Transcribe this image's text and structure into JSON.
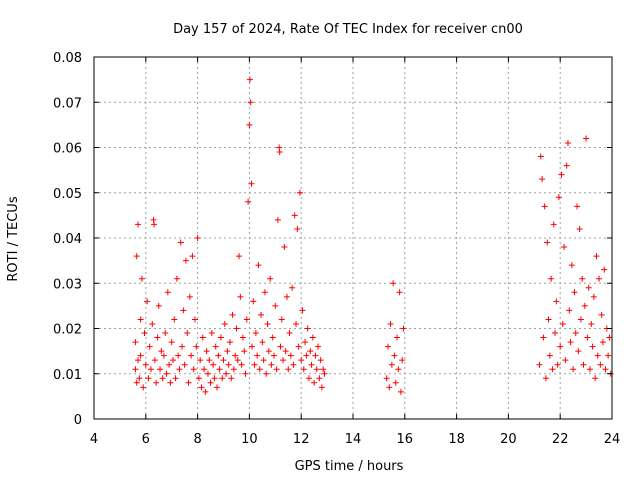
{
  "chart_data": {
    "type": "scatter",
    "title": "Day 157 of 2024, Rate Of TEC Index for receiver cn00",
    "xlabel": "GPS time / hours",
    "ylabel": "ROTI / TECUs",
    "xlim": [
      4,
      24
    ],
    "ylim": [
      0,
      0.08
    ],
    "grid": true,
    "marker": "+",
    "marker_color": "#ff0000",
    "x_ticks": [
      4,
      6,
      8,
      10,
      12,
      14,
      16,
      18,
      20,
      22,
      24
    ],
    "x_tick_labels": [
      "4",
      "6",
      "8",
      "10",
      "12",
      "14",
      "16",
      "18",
      "20",
      "22",
      "24"
    ],
    "y_ticks": [
      0,
      0.01,
      0.02,
      0.03,
      0.04,
      0.05,
      0.06,
      0.07,
      0.08
    ],
    "y_tick_labels": [
      "0",
      "0.01",
      "0.02",
      "0.03",
      "0.04",
      "0.05",
      "0.06",
      "0.07",
      "0.08"
    ],
    "series": [
      {
        "name": "ROTI",
        "points": [
          [
            5.6,
            0.011
          ],
          [
            5.6,
            0.017
          ],
          [
            5.65,
            0.008
          ],
          [
            5.65,
            0.036
          ],
          [
            5.7,
            0.043
          ],
          [
            5.7,
            0.013
          ],
          [
            5.75,
            0.009
          ],
          [
            5.8,
            0.022
          ],
          [
            5.8,
            0.014
          ],
          [
            5.85,
            0.031
          ],
          [
            5.9,
            0.007
          ],
          [
            5.95,
            0.019
          ],
          [
            6.0,
            0.012
          ],
          [
            6.05,
            0.026
          ],
          [
            6.1,
            0.009
          ],
          [
            6.15,
            0.016
          ],
          [
            6.2,
            0.011
          ],
          [
            6.25,
            0.021
          ],
          [
            6.3,
            0.044
          ],
          [
            6.32,
            0.043
          ],
          [
            6.35,
            0.013
          ],
          [
            6.4,
            0.008
          ],
          [
            6.45,
            0.018
          ],
          [
            6.5,
            0.025
          ],
          [
            6.55,
            0.011
          ],
          [
            6.6,
            0.015
          ],
          [
            6.65,
            0.009
          ],
          [
            6.7,
            0.014
          ],
          [
            6.75,
            0.019
          ],
          [
            6.8,
            0.01
          ],
          [
            6.85,
            0.028
          ],
          [
            6.9,
            0.012
          ],
          [
            6.95,
            0.008
          ],
          [
            7.0,
            0.017
          ],
          [
            7.05,
            0.013
          ],
          [
            7.1,
            0.022
          ],
          [
            7.15,
            0.009
          ],
          [
            7.2,
            0.031
          ],
          [
            7.25,
            0.014
          ],
          [
            7.3,
            0.011
          ],
          [
            7.35,
            0.039
          ],
          [
            7.4,
            0.016
          ],
          [
            7.45,
            0.024
          ],
          [
            7.5,
            0.012
          ],
          [
            7.55,
            0.035
          ],
          [
            7.6,
            0.019
          ],
          [
            7.65,
            0.008
          ],
          [
            7.7,
            0.027
          ],
          [
            7.75,
            0.014
          ],
          [
            7.8,
            0.036
          ],
          [
            7.85,
            0.011
          ],
          [
            7.9,
            0.022
          ],
          [
            7.95,
            0.016
          ],
          [
            8.0,
            0.04
          ],
          [
            8.05,
            0.009
          ],
          [
            8.1,
            0.013
          ],
          [
            8.15,
            0.007
          ],
          [
            8.2,
            0.018
          ],
          [
            8.25,
            0.011
          ],
          [
            8.3,
            0.006
          ],
          [
            8.35,
            0.015
          ],
          [
            8.4,
            0.01
          ],
          [
            8.45,
            0.013
          ],
          [
            8.5,
            0.008
          ],
          [
            8.55,
            0.019
          ],
          [
            8.6,
            0.012
          ],
          [
            8.65,
            0.009
          ],
          [
            8.7,
            0.016
          ],
          [
            8.75,
            0.007
          ],
          [
            8.8,
            0.014
          ],
          [
            8.85,
            0.011
          ],
          [
            8.9,
            0.018
          ],
          [
            8.95,
            0.009
          ],
          [
            9.0,
            0.013
          ],
          [
            9.05,
            0.021
          ],
          [
            9.1,
            0.01
          ],
          [
            9.15,
            0.015
          ],
          [
            9.2,
            0.012
          ],
          [
            9.25,
            0.017
          ],
          [
            9.3,
            0.009
          ],
          [
            9.35,
            0.023
          ],
          [
            9.4,
            0.011
          ],
          [
            9.45,
            0.014
          ],
          [
            9.5,
            0.02
          ],
          [
            9.55,
            0.013
          ],
          [
            9.6,
            0.036
          ],
          [
            9.65,
            0.027
          ],
          [
            9.7,
            0.012
          ],
          [
            9.75,
            0.018
          ],
          [
            9.8,
            0.015
          ],
          [
            9.85,
            0.01
          ],
          [
            9.9,
            0.022
          ],
          [
            9.95,
            0.048
          ],
          [
            10.0,
            0.065
          ],
          [
            10.02,
            0.075
          ],
          [
            10.05,
            0.07
          ],
          [
            10.08,
            0.052
          ],
          [
            10.1,
            0.016
          ],
          [
            10.15,
            0.026
          ],
          [
            10.2,
            0.012
          ],
          [
            10.25,
            0.019
          ],
          [
            10.3,
            0.014
          ],
          [
            10.35,
            0.034
          ],
          [
            10.4,
            0.011
          ],
          [
            10.45,
            0.023
          ],
          [
            10.5,
            0.017
          ],
          [
            10.55,
            0.013
          ],
          [
            10.6,
            0.028
          ],
          [
            10.65,
            0.01
          ],
          [
            10.7,
            0.021
          ],
          [
            10.75,
            0.015
          ],
          [
            10.8,
            0.031
          ],
          [
            10.85,
            0.012
          ],
          [
            10.9,
            0.018
          ],
          [
            10.95,
            0.014
          ],
          [
            11.0,
            0.025
          ],
          [
            11.05,
            0.011
          ],
          [
            11.1,
            0.044
          ],
          [
            11.15,
            0.06
          ],
          [
            11.17,
            0.059
          ],
          [
            11.2,
            0.016
          ],
          [
            11.25,
            0.022
          ],
          [
            11.3,
            0.013
          ],
          [
            11.35,
            0.038
          ],
          [
            11.4,
            0.015
          ],
          [
            11.45,
            0.027
          ],
          [
            11.5,
            0.011
          ],
          [
            11.55,
            0.019
          ],
          [
            11.6,
            0.014
          ],
          [
            11.65,
            0.029
          ],
          [
            11.7,
            0.012
          ],
          [
            11.75,
            0.045
          ],
          [
            11.8,
            0.021
          ],
          [
            11.85,
            0.042
          ],
          [
            11.9,
            0.016
          ],
          [
            11.95,
            0.05
          ],
          [
            12.0,
            0.013
          ],
          [
            12.05,
            0.024
          ],
          [
            12.1,
            0.011
          ],
          [
            12.15,
            0.017
          ],
          [
            12.2,
            0.014
          ],
          [
            12.25,
            0.02
          ],
          [
            12.3,
            0.009
          ],
          [
            12.35,
            0.015
          ],
          [
            12.4,
            0.012
          ],
          [
            12.45,
            0.018
          ],
          [
            12.5,
            0.008
          ],
          [
            12.55,
            0.014
          ],
          [
            12.6,
            0.011
          ],
          [
            12.65,
            0.016
          ],
          [
            12.7,
            0.009
          ],
          [
            12.75,
            0.013
          ],
          [
            12.8,
            0.007
          ],
          [
            12.85,
            0.011
          ],
          [
            12.9,
            0.01
          ],
          [
            15.3,
            0.009
          ],
          [
            15.35,
            0.016
          ],
          [
            15.4,
            0.007
          ],
          [
            15.45,
            0.021
          ],
          [
            15.5,
            0.012
          ],
          [
            15.55,
            0.03
          ],
          [
            15.6,
            0.014
          ],
          [
            15.65,
            0.008
          ],
          [
            15.7,
            0.018
          ],
          [
            15.75,
            0.011
          ],
          [
            15.8,
            0.028
          ],
          [
            15.85,
            0.006
          ],
          [
            15.9,
            0.013
          ],
          [
            15.95,
            0.02
          ],
          [
            21.2,
            0.012
          ],
          [
            21.25,
            0.058
          ],
          [
            21.3,
            0.053
          ],
          [
            21.35,
            0.018
          ],
          [
            21.4,
            0.047
          ],
          [
            21.45,
            0.009
          ],
          [
            21.5,
            0.039
          ],
          [
            21.55,
            0.022
          ],
          [
            21.6,
            0.014
          ],
          [
            21.65,
            0.031
          ],
          [
            21.7,
            0.011
          ],
          [
            21.75,
            0.043
          ],
          [
            21.8,
            0.019
          ],
          [
            21.85,
            0.026
          ],
          [
            21.9,
            0.012
          ],
          [
            21.95,
            0.049
          ],
          [
            22.0,
            0.016
          ],
          [
            22.05,
            0.054
          ],
          [
            22.1,
            0.021
          ],
          [
            22.15,
            0.038
          ],
          [
            22.2,
            0.013
          ],
          [
            22.25,
            0.056
          ],
          [
            22.3,
            0.061
          ],
          [
            22.35,
            0.024
          ],
          [
            22.4,
            0.017
          ],
          [
            22.45,
            0.034
          ],
          [
            22.5,
            0.011
          ],
          [
            22.55,
            0.028
          ],
          [
            22.6,
            0.019
          ],
          [
            22.65,
            0.047
          ],
          [
            22.7,
            0.015
          ],
          [
            22.75,
            0.042
          ],
          [
            22.8,
            0.022
          ],
          [
            22.85,
            0.031
          ],
          [
            22.9,
            0.012
          ],
          [
            22.95,
            0.025
          ],
          [
            23.0,
            0.062
          ],
          [
            23.05,
            0.018
          ],
          [
            23.1,
            0.029
          ],
          [
            23.15,
            0.011
          ],
          [
            23.2,
            0.021
          ],
          [
            23.25,
            0.016
          ],
          [
            23.3,
            0.027
          ],
          [
            23.35,
            0.009
          ],
          [
            23.4,
            0.036
          ],
          [
            23.45,
            0.014
          ],
          [
            23.5,
            0.031
          ],
          [
            23.55,
            0.012
          ],
          [
            23.6,
            0.023
          ],
          [
            23.65,
            0.017
          ],
          [
            23.7,
            0.033
          ],
          [
            23.75,
            0.011
          ],
          [
            23.8,
            0.02
          ],
          [
            23.85,
            0.014
          ],
          [
            23.9,
            0.018
          ],
          [
            23.95,
            0.01
          ]
        ]
      }
    ]
  }
}
